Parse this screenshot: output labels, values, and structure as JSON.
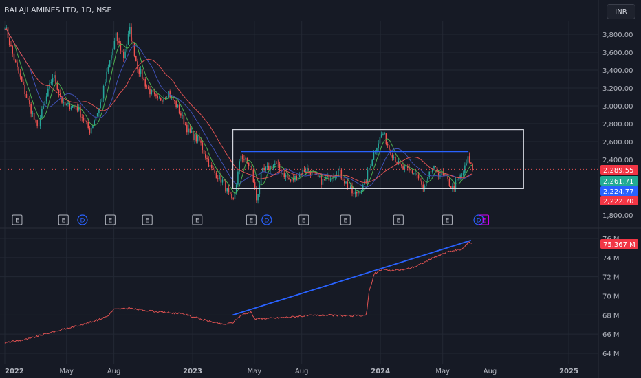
{
  "header": {
    "title": "BALAJI AMINES LTD, 1D, NSE",
    "currency": "INR"
  },
  "colors": {
    "bg": "#161a25",
    "grid": "#232834",
    "up": "#26a69a",
    "down": "#ef5350",
    "blue": "#2962ff",
    "ma_red": "#e05252",
    "ma_green": "#4caf50",
    "ma_blue": "#3f51b5",
    "rect": "#d1d4dc",
    "text": "#b2b5be"
  },
  "chart_data": [
    {
      "type": "candlestick",
      "ylim": [
        1700,
        3950
      ],
      "price_ticks": [
        "3,800.00",
        "3,600.00",
        "3,400.00",
        "3,200.00",
        "3,000.00",
        "2,800.00",
        "2,600.00",
        "2,400.00",
        "1,800.00"
      ],
      "x_tick_labels": [
        "2022",
        "May",
        "Aug",
        "2023",
        "May",
        "Aug",
        "2024",
        "May",
        "Aug",
        "2025"
      ],
      "price_key_points": [
        [
          "2022-01-01",
          3900
        ],
        [
          "2022-01-20",
          3500
        ],
        [
          "2022-02-15",
          3050
        ],
        [
          "2022-03-05",
          2750
        ],
        [
          "2022-04-05",
          3350
        ],
        [
          "2022-04-25",
          3000
        ],
        [
          "2022-05-20",
          3000
        ],
        [
          "2022-06-15",
          2720
        ],
        [
          "2022-07-05",
          3000
        ],
        [
          "2022-07-20",
          3400
        ],
        [
          "2022-08-05",
          3780
        ],
        [
          "2022-08-20",
          3550
        ],
        [
          "2022-09-01",
          3850
        ],
        [
          "2022-09-15",
          3450
        ],
        [
          "2022-10-05",
          3200
        ],
        [
          "2022-10-25",
          3050
        ],
        [
          "2022-11-15",
          3150
        ],
        [
          "2022-12-01",
          3000
        ],
        [
          "2022-12-25",
          2700
        ],
        [
          "2023-01-15",
          2600
        ],
        [
          "2023-02-05",
          2300
        ],
        [
          "2023-03-01",
          2150
        ],
        [
          "2023-03-20",
          1900
        ],
        [
          "2023-04-05",
          2450
        ],
        [
          "2023-04-25",
          2300
        ],
        [
          "2023-05-05",
          1950
        ],
        [
          "2023-05-15",
          2250
        ],
        [
          "2023-06-10",
          2350
        ],
        [
          "2023-07-10",
          2150
        ],
        [
          "2023-08-10",
          2300
        ],
        [
          "2023-09-10",
          2150
        ],
        [
          "2023-10-10",
          2280
        ],
        [
          "2023-11-10",
          2000
        ],
        [
          "2023-11-30",
          2100
        ],
        [
          "2023-12-20",
          2500
        ],
        [
          "2024-01-05",
          2700
        ],
        [
          "2024-01-20",
          2500
        ],
        [
          "2024-02-10",
          2300
        ],
        [
          "2024-03-10",
          2250
        ],
        [
          "2024-03-25",
          2050
        ],
        [
          "2024-04-10",
          2300
        ],
        [
          "2024-05-05",
          2200
        ],
        [
          "2024-05-20",
          2080
        ],
        [
          "2024-06-10",
          2250
        ],
        [
          "2024-06-20",
          2420
        ],
        [
          "2024-06-28",
          2290
        ]
      ],
      "last_price": 2289.55,
      "sma_values": [
        2261.71,
        2224.77,
        2222.7
      ],
      "price_labels": [
        "2,289.55",
        "2,261.71",
        "2,224.77",
        "2,222.70"
      ],
      "trend_line": [
        [
          "2023-04-05",
          2490
        ],
        [
          "2024-06-20",
          2490
        ]
      ],
      "box": {
        "x": [
          "2023-03-20",
          "2024-10-05"
        ],
        "y": [
          2075,
          2735
        ]
      },
      "events": [
        {
          "date": "2022-01-25",
          "label": "E"
        },
        {
          "date": "2022-04-25",
          "label": "E"
        },
        {
          "date": "2022-06-01",
          "label": "D"
        },
        {
          "date": "2022-07-25",
          "label": "E"
        },
        {
          "date": "2022-10-05",
          "label": "E"
        },
        {
          "date": "2023-01-10",
          "label": "E"
        },
        {
          "date": "2023-04-25",
          "label": "E"
        },
        {
          "date": "2023-05-25",
          "label": "D"
        },
        {
          "date": "2023-08-05",
          "label": "E"
        },
        {
          "date": "2023-10-25",
          "label": "E"
        },
        {
          "date": "2024-02-05",
          "label": "E"
        },
        {
          "date": "2024-05-10",
          "label": "E"
        },
        {
          "date": "2024-07-10",
          "label": "D"
        },
        {
          "date": "2024-07-20",
          "label": "E"
        }
      ]
    },
    {
      "type": "line",
      "ylim": [
        63.6,
        76.3
      ],
      "y_ticks": [
        "76 M",
        "74 M",
        "72 M",
        "70 M",
        "68 M",
        "66 M",
        "64 M"
      ],
      "y_tick_values": [
        76,
        74,
        72,
        70,
        68,
        66,
        64
      ],
      "last_value_label": "75.367 M",
      "series_key_points": [
        [
          "2022-01-01",
          65.1
        ],
        [
          "2022-02-15",
          65.5
        ],
        [
          "2022-04-01",
          66.2
        ],
        [
          "2022-06-01",
          67.0
        ],
        [
          "2022-07-01",
          67.5
        ],
        [
          "2022-07-20",
          67.9
        ],
        [
          "2022-08-01",
          68.6
        ],
        [
          "2022-09-01",
          68.7
        ],
        [
          "2022-10-15",
          68.4
        ],
        [
          "2022-12-15",
          68.1
        ],
        [
          "2023-01-15",
          67.6
        ],
        [
          "2023-03-01",
          67.0
        ],
        [
          "2023-03-20",
          67.2
        ],
        [
          "2023-04-05",
          68.0
        ],
        [
          "2023-04-25",
          68.3
        ],
        [
          "2023-05-01",
          67.6
        ],
        [
          "2023-06-15",
          67.7
        ],
        [
          "2023-08-01",
          67.9
        ],
        [
          "2023-09-15",
          68.0
        ],
        [
          "2023-11-01",
          67.9
        ],
        [
          "2023-12-05",
          68.0
        ],
        [
          "2023-12-10",
          70.5
        ],
        [
          "2023-12-20",
          72.3
        ],
        [
          "2024-01-05",
          72.8
        ],
        [
          "2024-01-20",
          72.6
        ],
        [
          "2024-02-20",
          72.8
        ],
        [
          "2024-03-10",
          73.1
        ],
        [
          "2024-04-10",
          73.9
        ],
        [
          "2024-05-10",
          74.6
        ],
        [
          "2024-06-10",
          74.9
        ],
        [
          "2024-06-20",
          75.7
        ],
        [
          "2024-06-28",
          75.367
        ]
      ],
      "trend_line": [
        [
          "2023-03-20",
          68.0
        ],
        [
          "2024-06-25",
          75.8
        ]
      ]
    }
  ]
}
